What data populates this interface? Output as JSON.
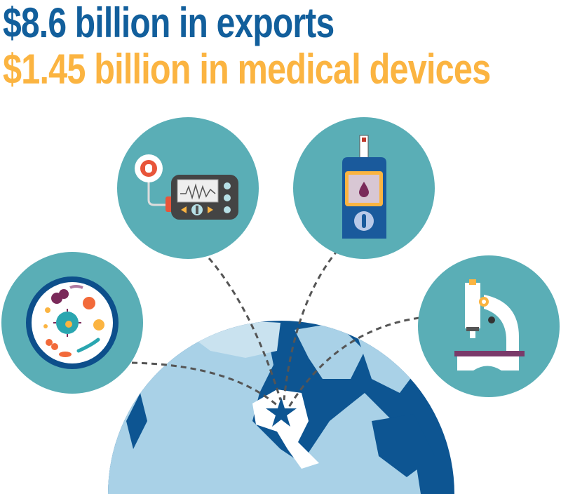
{
  "headline": {
    "exports": "$8.6 billion in exports",
    "medical_devices": "$1.45 billion in medical devices"
  },
  "colors": {
    "exports_blue": "#125f9c",
    "devices_orange": "#fbb441",
    "circle_teal": "#5aaeb6",
    "globe_ocean": "#0d5592",
    "globe_land": "#a9d1e7"
  },
  "icons": [
    "insulin-pump-icon",
    "glucose-meter-icon",
    "microbes-petri-dish-icon",
    "microscope-icon",
    "globe-icon",
    "star-icon"
  ]
}
